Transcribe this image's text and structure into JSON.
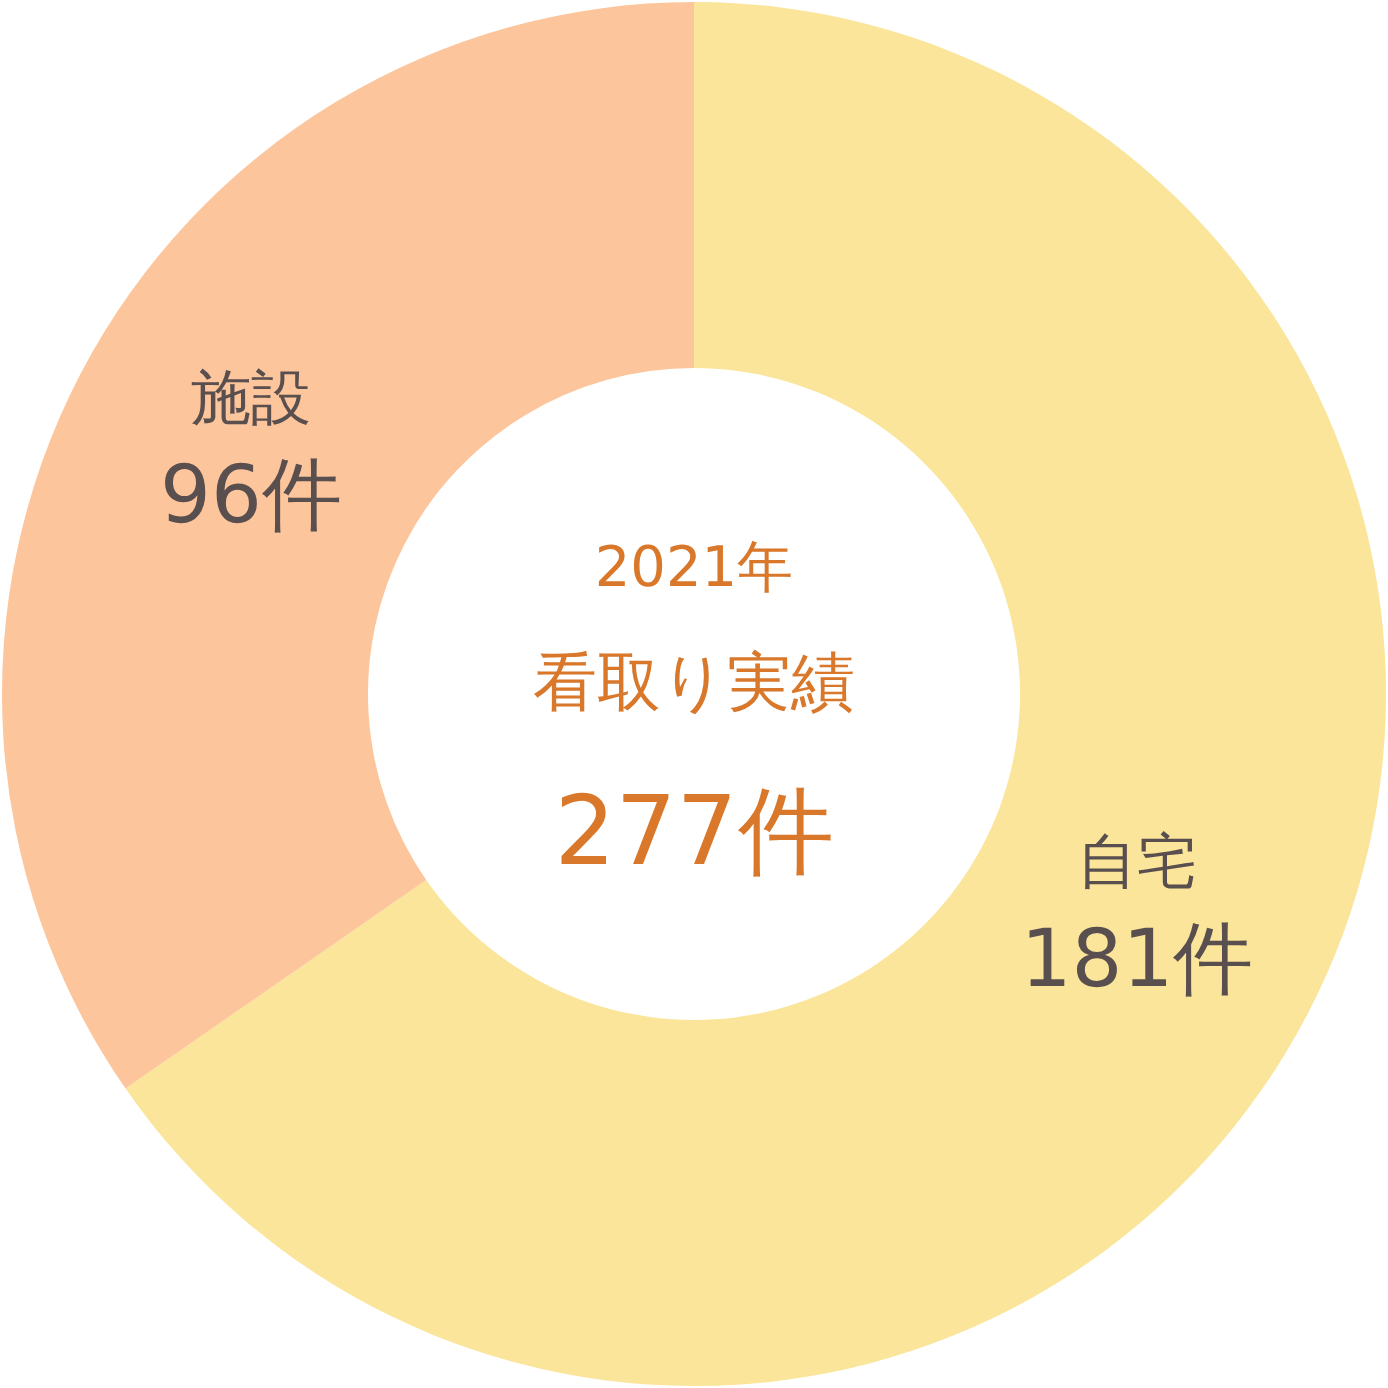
{
  "chart_data": {
    "type": "donut",
    "title": "2021年",
    "subtitle": "看取り実績",
    "annotations": [
      "277件"
    ],
    "categories": [
      "自宅",
      "施設"
    ],
    "values": [
      181,
      96
    ],
    "colors": [
      "#fae59a",
      "#fdc59b"
    ],
    "value_labels": [
      "181件",
      "96件"
    ]
  }
}
